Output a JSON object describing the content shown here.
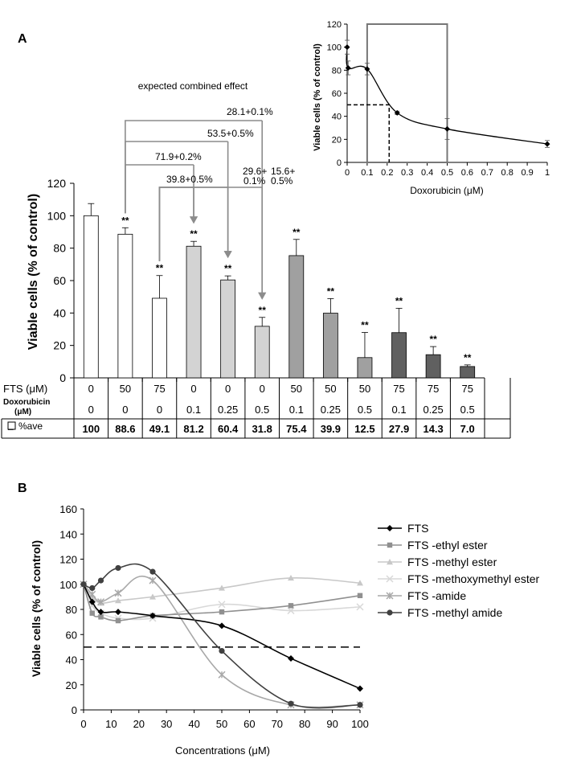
{
  "panels": {
    "a": "A",
    "b": "B"
  },
  "chart_data": [
    {
      "type": "bar",
      "panel": "A",
      "ylabel": "Viable cells (% of control)",
      "ylim": [
        0,
        120
      ],
      "yticks": [
        0,
        20,
        40,
        60,
        80,
        100,
        120
      ],
      "table_labels": {
        "fts": "FTS (μM)",
        "dox": "Doxorubicin",
        "dox_unit": "(μM)",
        "ave": "%ave",
        "ave_marker": "□"
      },
      "fts": [
        "0",
        "50",
        "75",
        "0",
        "0",
        "0",
        "50",
        "50",
        "50",
        "75",
        "75",
        "75"
      ],
      "doxorubicin": [
        "0",
        "0",
        "0",
        "0.1",
        "0.25",
        "0.5",
        "0.1",
        "0.25",
        "0.5",
        "0.1",
        "0.25",
        "0.5"
      ],
      "values": [
        100,
        88.6,
        49.1,
        81.2,
        60.4,
        31.8,
        75.4,
        39.9,
        12.5,
        27.9,
        14.3,
        7.0
      ],
      "value_labels": [
        "100",
        "88.6",
        "49.1",
        "81.2",
        "60.4",
        "31.8",
        "75.4",
        "39.9",
        "12.5",
        "27.9",
        "14.3",
        "7.0"
      ],
      "errors": [
        7.5,
        4,
        14,
        3,
        2.5,
        5.5,
        10,
        9,
        15.5,
        15,
        5,
        1
      ],
      "significance": [
        "",
        "**",
        "**",
        "**",
        "**",
        "**",
        "**",
        "**",
        "**",
        "**",
        "**",
        "**"
      ],
      "bar_colors": [
        "#ffffff",
        "#ffffff",
        "#ffffff",
        "#d3d3d3",
        "#d3d3d3",
        "#d3d3d3",
        "#a0a0a0",
        "#a0a0a0",
        "#a0a0a0",
        "#606060",
        "#606060",
        "#606060"
      ],
      "annotation_title": "expected combined effect",
      "expected": [
        {
          "label": "28.1+0.1%",
          "from_bar": 1,
          "to_bar": 5
        },
        {
          "label": "53.5+0.5%",
          "from_bar": 1,
          "to_bar": 4
        },
        {
          "label": "71.9+0.2%",
          "from_bar": 1,
          "to_bar": 3
        },
        {
          "label": "39.8+0.5%",
          "from_bar": 2,
          "to_bar": 3
        },
        {
          "label": "29.6+",
          "label2": "0.1%",
          "from_bar": 2,
          "to_bar": 4
        },
        {
          "label": "15.6+",
          "label2": "0.5%",
          "from_bar": 2,
          "to_bar": 5
        }
      ]
    },
    {
      "type": "line",
      "panel": "A-inset",
      "xlabel": "Doxorubicin (μM)",
      "ylabel": "Viable cells (% of control)",
      "xlim": [
        0,
        1
      ],
      "ylim": [
        0,
        120
      ],
      "xticks": [
        "0",
        "0.1",
        "0.2",
        "0.3",
        "0.4",
        "0.5",
        "0.6",
        "0.7",
        "0.8",
        "0.9",
        "1"
      ],
      "yticks": [
        0,
        20,
        40,
        60,
        80,
        100,
        120
      ],
      "x": [
        0,
        0.005,
        0.1,
        0.25,
        0.5,
        1.0
      ],
      "y": [
        100,
        82,
        81,
        43,
        29,
        16
      ],
      "errors": [
        6,
        6,
        5,
        1.5,
        9,
        3
      ],
      "highlight_range": [
        0.1,
        0.5
      ],
      "ic50": {
        "x": 0.21,
        "y": 50
      }
    },
    {
      "type": "line",
      "panel": "B",
      "xlabel": "Concentrations (μM)",
      "ylabel": "Viable cells (% of control)",
      "xlim": [
        0,
        100
      ],
      "ylim": [
        0,
        160
      ],
      "xticks": [
        0,
        10,
        20,
        30,
        40,
        50,
        60,
        70,
        80,
        90,
        100
      ],
      "yticks": [
        0,
        20,
        40,
        60,
        80,
        100,
        120,
        140,
        160
      ],
      "threshold": 50,
      "legend_position": "right",
      "x": [
        0,
        3.125,
        6.25,
        12.5,
        25,
        50,
        75,
        100
      ],
      "series": [
        {
          "name": "FTS",
          "values": [
            100,
            86,
            78,
            78,
            75,
            67,
            41,
            17
          ],
          "color": "#000000",
          "marker": "diamond"
        },
        {
          "name": "FTS -ethyl ester",
          "values": [
            100,
            77,
            74,
            71,
            75,
            78,
            83,
            91
          ],
          "color": "#909090",
          "marker": "square"
        },
        {
          "name": "FTS -methyl ester",
          "values": [
            100,
            90,
            85,
            87,
            90,
            97,
            105,
            101
          ],
          "color": "#c8c8c8",
          "marker": "triangle"
        },
        {
          "name": "FTS -methoxymethyl ester",
          "values": [
            100,
            83,
            77,
            73,
            73,
            84,
            79,
            82
          ],
          "color": "#d8d8d8",
          "marker": "x"
        },
        {
          "name": "FTS -amide",
          "values": [
            100,
            92,
            86,
            93,
            103,
            28,
            4,
            4
          ],
          "color": "#a8a8a8",
          "marker": "star"
        },
        {
          "name": "FTS -methyl amide",
          "values": [
            100,
            97,
            103,
            113,
            110,
            47,
            5,
            4
          ],
          "color": "#404040",
          "marker": "circle"
        }
      ]
    }
  ]
}
